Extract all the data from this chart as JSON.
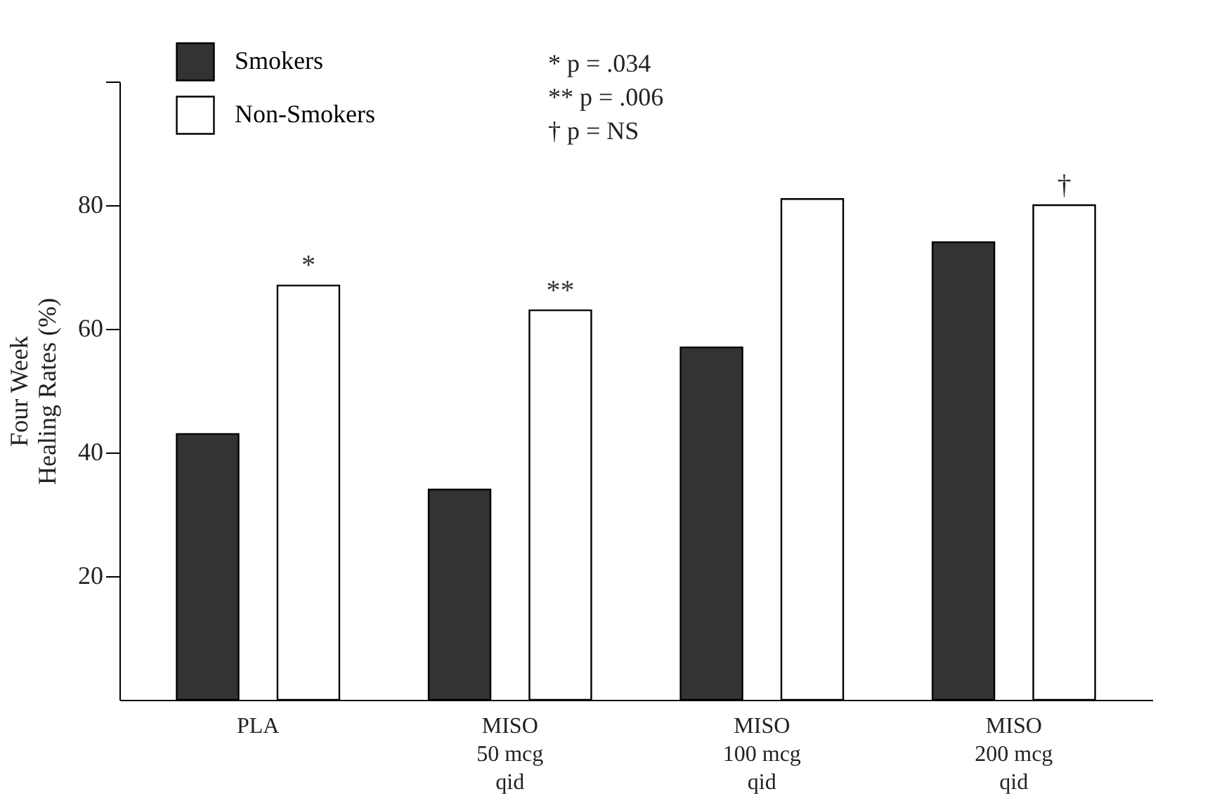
{
  "chart_data": {
    "type": "bar",
    "ylabel": "Four Week\nHealing Rates (%)",
    "categories": [
      "PLA",
      "MISO\n50 mcg\nqid",
      "MISO\n100 mcg\nqid",
      "MISO\n200 mcg\nqid"
    ],
    "series": [
      {
        "name": "Smokers",
        "color": "#333333",
        "values": [
          43,
          34,
          57,
          74
        ]
      },
      {
        "name": "Non-Smokers",
        "color": "#ffffff",
        "values": [
          67,
          63,
          81,
          80
        ],
        "value_labels": [
          "*",
          "**",
          null,
          "†"
        ]
      }
    ],
    "ylim": [
      0,
      100
    ],
    "yticks": [
      20,
      40,
      60,
      80,
      {
        "value": 100,
        "label": null
      }
    ],
    "annotations": [
      "* p = .034",
      "** p = .006",
      "† p = NS"
    ],
    "legend": "top left",
    "grid": false
  }
}
